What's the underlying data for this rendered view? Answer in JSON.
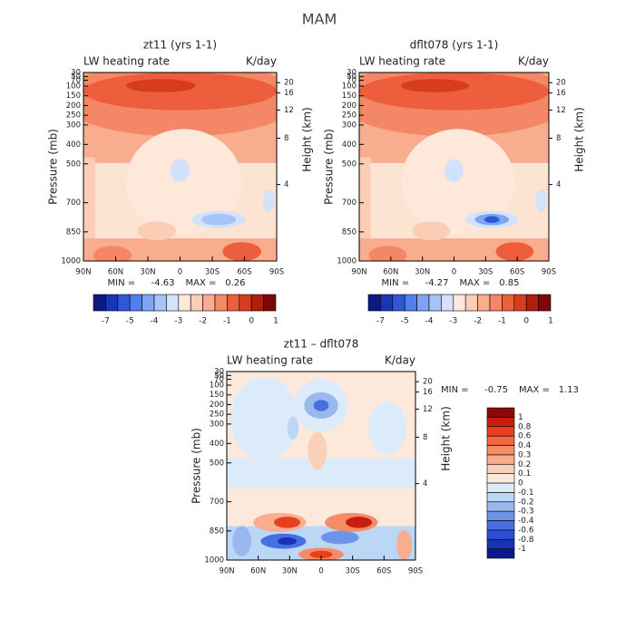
{
  "title": "MAM",
  "chart_data": [
    {
      "type": "contour",
      "title": "zt11 (yrs 1-1)",
      "subtitle_left": "LW heating rate",
      "subtitle_right": "K/day",
      "ylabel": "Pressure (mb)",
      "y2label": "Height (km)",
      "xlim": [
        90,
        -90
      ],
      "xticks": [
        {
          "value": 90,
          "label": "90N"
        },
        {
          "value": 60,
          "label": "60N"
        },
        {
          "value": 30,
          "label": "30N"
        },
        0,
        {
          "value": -30,
          "label": "30S"
        },
        {
          "value": -60,
          "label": "60S"
        },
        {
          "value": -90,
          "label": "90S"
        }
      ],
      "ylim": [
        1000,
        30
      ],
      "yticks": [
        30,
        50,
        70,
        100,
        150,
        200,
        250,
        300,
        400,
        500,
        700,
        850,
        1000
      ],
      "y2ticks": [
        4,
        8,
        12,
        16,
        20
      ],
      "min_label": "MIN =",
      "min": -4.63,
      "max_label": "MAX =",
      "max": 0.26,
      "colorbar": {
        "orientation": "horizontal",
        "colors": [
          "#0a1a80",
          "#1a36b8",
          "#2e58d8",
          "#5080ea",
          "#7ea4f2",
          "#a8c4f6",
          "#d2e2fa",
          "#fde8da",
          "#fbcdb4",
          "#f8ad8e",
          "#f48866",
          "#ec5e3c",
          "#d83c1e",
          "#b01e10",
          "#7e0808"
        ],
        "ticks": [
          -7,
          -5,
          -4,
          -3,
          -2,
          -1,
          0,
          1
        ]
      }
    },
    {
      "type": "contour",
      "title": "dflt078 (yrs 1-1)",
      "subtitle_left": "LW heating rate",
      "subtitle_right": "K/day",
      "ylabel": "Pressure (mb)",
      "y2label": "Height (km)",
      "xlim": [
        90,
        -90
      ],
      "xticks": [
        {
          "value": 90,
          "label": "90N"
        },
        {
          "value": 60,
          "label": "60N"
        },
        {
          "value": 30,
          "label": "30N"
        },
        0,
        {
          "value": -30,
          "label": "30S"
        },
        {
          "value": -60,
          "label": "60S"
        },
        {
          "value": -90,
          "label": "90S"
        }
      ],
      "ylim": [
        1000,
        30
      ],
      "yticks": [
        30,
        50,
        70,
        100,
        150,
        200,
        250,
        300,
        400,
        500,
        700,
        850,
        1000
      ],
      "y2ticks": [
        4,
        8,
        12,
        16,
        20
      ],
      "min_label": "MIN =",
      "min": -4.27,
      "max_label": "MAX =",
      "max": 0.85,
      "colorbar": {
        "orientation": "horizontal",
        "colors": [
          "#0a1a80",
          "#1a36b8",
          "#2e58d8",
          "#5080ea",
          "#7ea4f2",
          "#a8c4f6",
          "#d2e2fa",
          "#fde8da",
          "#fbcdb4",
          "#f8ad8e",
          "#f48866",
          "#ec5e3c",
          "#d83c1e",
          "#b01e10",
          "#7e0808"
        ],
        "ticks": [
          -7,
          -5,
          -4,
          -3,
          -2,
          -1,
          0,
          1
        ]
      }
    },
    {
      "type": "contour",
      "title": "zt11 – dflt078",
      "subtitle_left": "LW heating rate",
      "subtitle_right": "K/day",
      "ylabel": "Pressure (mb)",
      "y2label": "Height (km)",
      "xlim": [
        90,
        -90
      ],
      "xticks": [
        {
          "value": 90,
          "label": "90N"
        },
        {
          "value": 60,
          "label": "60N"
        },
        {
          "value": 30,
          "label": "30N"
        },
        0,
        {
          "value": -30,
          "label": "30S"
        },
        {
          "value": -60,
          "label": "60S"
        },
        {
          "value": -90,
          "label": "90S"
        }
      ],
      "ylim": [
        1000,
        30
      ],
      "yticks": [
        30,
        50,
        70,
        100,
        150,
        200,
        250,
        300,
        400,
        500,
        700,
        850,
        1000
      ],
      "y2ticks": [
        4,
        8,
        12,
        16,
        20
      ],
      "min_label": "MIN =",
      "min": -0.75,
      "max_label": "MAX =",
      "max": 1.13,
      "colorbar": {
        "orientation": "vertical",
        "colors": [
          "#0a1a8c",
          "#1a30b8",
          "#2a4ed6",
          "#4670e2",
          "#6e94ea",
          "#9ab8f0",
          "#bcd6f6",
          "#dcebfa",
          "#fde8dc",
          "#fbd0b8",
          "#f8ae8e",
          "#f58c66",
          "#f26640",
          "#e8401e",
          "#c81e10",
          "#8a0a0a"
        ],
        "ticks": [
          -1,
          -0.8,
          -0.6,
          -0.4,
          -0.3,
          -0.2,
          -0.1,
          0,
          0.1,
          0.2,
          0.3,
          0.4,
          0.6,
          0.8,
          1
        ]
      }
    }
  ]
}
